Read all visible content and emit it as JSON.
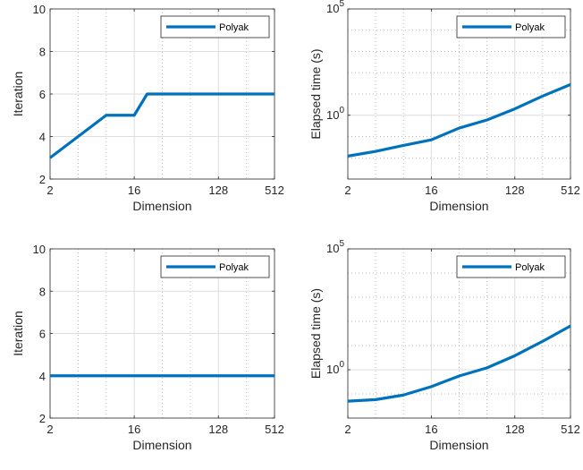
{
  "chart_data": [
    {
      "type": "line",
      "xscale": "log2",
      "yscale": "linear",
      "x": [
        2,
        4,
        8,
        11,
        16,
        22,
        32,
        64,
        128,
        256,
        512
      ],
      "series": [
        {
          "name": "Polyak",
          "values": [
            3,
            4,
            5,
            5,
            5,
            6,
            6,
            6,
            6,
            6,
            6
          ]
        }
      ],
      "xlabel": "Dimension",
      "ylabel": "Iteration",
      "xticks": [
        2,
        16,
        128,
        512
      ],
      "xtick_labels": [
        "2",
        "16",
        "128",
        "512"
      ],
      "xlim": [
        2,
        512
      ],
      "ylim": [
        2,
        10
      ],
      "yticks": [
        2,
        4,
        6,
        8,
        10
      ],
      "ytick_labels": [
        "2",
        "4",
        "6",
        "8",
        "10"
      ],
      "grid": true,
      "legend_position": "top-right"
    },
    {
      "type": "line",
      "xscale": "log2",
      "yscale": "log10",
      "x": [
        2,
        4,
        8,
        16,
        32,
        64,
        128,
        256,
        512
      ],
      "series": [
        {
          "name": "Polyak",
          "values": [
            0.012,
            0.02,
            0.038,
            0.07,
            0.25,
            0.6,
            2.0,
            8.0,
            28
          ]
        }
      ],
      "xlabel": "Dimension",
      "ylabel": "Elapsed time (s)",
      "xticks": [
        2,
        16,
        128,
        512
      ],
      "xtick_labels": [
        "2",
        "16",
        "128",
        "512"
      ],
      "xlim": [
        2,
        512
      ],
      "ylim": [
        0.001,
        100000
      ],
      "yticks": [
        1,
        100000
      ],
      "ytick_labels": [
        {
          "base": "10",
          "exp": "0"
        },
        {
          "base": "10",
          "exp": "5"
        }
      ],
      "grid": true,
      "legend_position": "top-right"
    },
    {
      "type": "line",
      "xscale": "log2",
      "yscale": "linear",
      "x": [
        2,
        512
      ],
      "series": [
        {
          "name": "Polyak",
          "values": [
            4,
            4
          ]
        }
      ],
      "xlabel": "Dimension",
      "ylabel": "Iteration",
      "xticks": [
        2,
        16,
        128,
        512
      ],
      "xtick_labels": [
        "2",
        "16",
        "128",
        "512"
      ],
      "xlim": [
        2,
        512
      ],
      "ylim": [
        2,
        10
      ],
      "yticks": [
        2,
        4,
        6,
        8,
        10
      ],
      "ytick_labels": [
        "2",
        "4",
        "6",
        "8",
        "10"
      ],
      "grid": true,
      "legend_position": "top-right"
    },
    {
      "type": "line",
      "xscale": "log2",
      "yscale": "log10",
      "x": [
        2,
        4,
        8,
        16,
        32,
        64,
        128,
        256,
        512
      ],
      "series": [
        {
          "name": "Polyak",
          "values": [
            0.05,
            0.058,
            0.09,
            0.2,
            0.55,
            1.2,
            3.8,
            15,
            65
          ]
        }
      ],
      "xlabel": "Dimension",
      "ylabel": "Elapsed time (s)",
      "xticks": [
        2,
        16,
        128,
        512
      ],
      "xtick_labels": [
        "2",
        "16",
        "128",
        "512"
      ],
      "xlim": [
        2,
        512
      ],
      "ylim": [
        0.01,
        100000
      ],
      "yticks": [
        1,
        100000
      ],
      "ytick_labels": [
        {
          "base": "10",
          "exp": "0"
        },
        {
          "base": "10",
          "exp": "5"
        }
      ],
      "grid": true,
      "legend_position": "top-right"
    }
  ],
  "colors": {
    "series": "#0072BD",
    "axis": "#262626",
    "grid_major": "#dedede",
    "grid_minor": "#a8a8a8",
    "legend_border": "#262626"
  }
}
